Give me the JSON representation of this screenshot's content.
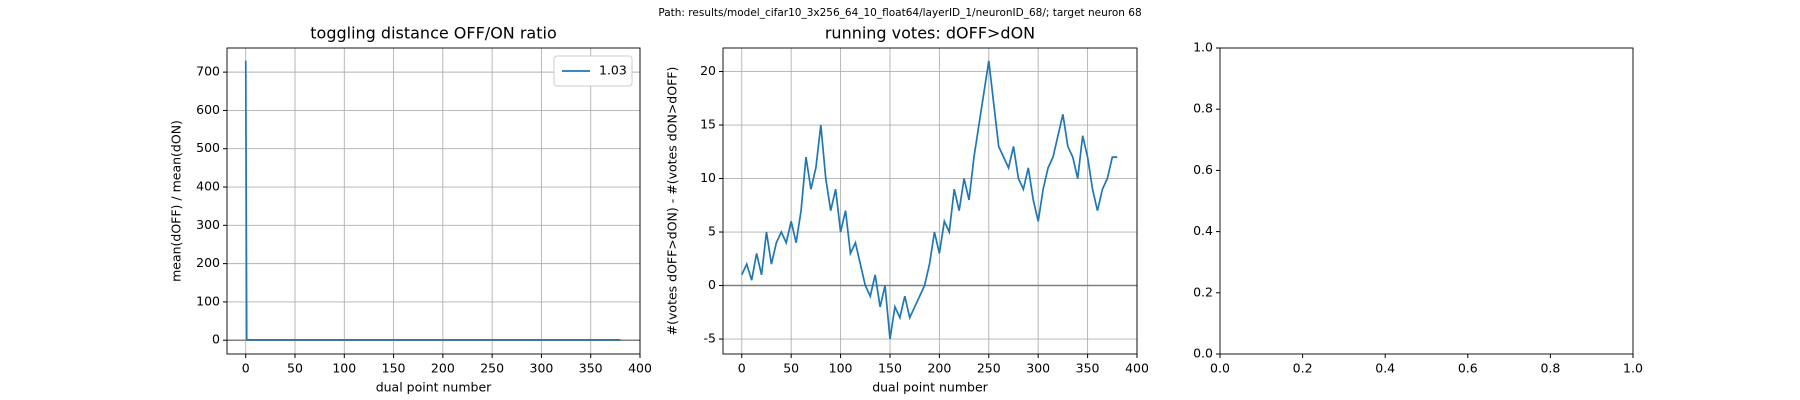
{
  "title": "Path: results/model_cifar10_3x256_64_10_float64/layerID_1/neuronID_68/; target neuron 68",
  "chart_data": [
    {
      "type": "line",
      "title": "toggling distance OFF/ON ratio",
      "xlabel": "dual point number",
      "ylabel": "mean(dOFF) / mean(dON)",
      "x": [
        0,
        1,
        2,
        380
      ],
      "series": [
        {
          "name": "1.03",
          "color": "#1f77b4",
          "values": [
            730,
            2,
            1.1,
            1.03
          ]
        }
      ],
      "xlim": [
        -19,
        400
      ],
      "ylim": [
        -36,
        763
      ],
      "xticks": [
        0,
        50,
        100,
        150,
        200,
        250,
        300,
        350,
        400
      ],
      "yticks": [
        0,
        100,
        200,
        300,
        400,
        500,
        600,
        700
      ],
      "hline": 0,
      "grid": true,
      "legend": "upper right"
    },
    {
      "type": "line",
      "title": "running votes: dOFF>dON",
      "xlabel": "dual point number",
      "ylabel": "#(votes dOFF>dON) - #(votes dON>dOFF)",
      "x": [
        0,
        5,
        10,
        15,
        20,
        25,
        30,
        35,
        40,
        45,
        50,
        55,
        60,
        65,
        70,
        75,
        80,
        85,
        90,
        95,
        100,
        105,
        110,
        115,
        120,
        125,
        130,
        135,
        140,
        145,
        150,
        155,
        160,
        165,
        170,
        175,
        180,
        185,
        190,
        195,
        200,
        205,
        210,
        215,
        220,
        225,
        230,
        235,
        240,
        245,
        250,
        255,
        260,
        265,
        270,
        275,
        280,
        285,
        290,
        295,
        300,
        305,
        310,
        315,
        320,
        325,
        330,
        335,
        340,
        345,
        350,
        355,
        360,
        365,
        370,
        375,
        380
      ],
      "series": [
        {
          "color": "#1f77b4",
          "values": [
            1,
            2,
            0.5,
            3,
            1,
            5,
            2,
            4,
            5,
            4,
            6,
            4,
            7,
            12,
            9,
            11,
            15,
            10,
            7,
            9,
            5,
            7,
            3,
            4,
            2,
            0,
            -1,
            1,
            -2,
            0,
            -5,
            -2,
            -3,
            -1,
            -3,
            -2,
            -1,
            0,
            2,
            5,
            3,
            6,
            5,
            9,
            7,
            10,
            8,
            12,
            15,
            18,
            21,
            17,
            13,
            12,
            11,
            13,
            10,
            9,
            11,
            8,
            6,
            9,
            11,
            12,
            14,
            16,
            13,
            12,
            10,
            14,
            12,
            9,
            7,
            9,
            10,
            12,
            12
          ]
        }
      ],
      "xlim": [
        -19,
        400
      ],
      "ylim": [
        -6.4,
        22.2
      ],
      "xticks": [
        0,
        50,
        100,
        150,
        200,
        250,
        300,
        350,
        400
      ],
      "yticks": [
        -5,
        0,
        5,
        10,
        15,
        20
      ],
      "hline": 0,
      "grid": true
    },
    {
      "type": "empty",
      "xlim": [
        0,
        1
      ],
      "ylim": [
        0,
        1
      ],
      "xticks": [
        {
          "value": 0,
          "label": "0.0"
        },
        0.2,
        0.4,
        0.6,
        0.8,
        {
          "value": 1,
          "label": "1.0"
        }
      ],
      "yticks": [
        {
          "value": 0,
          "label": "0.0"
        },
        0.2,
        0.4,
        0.6,
        0.8,
        {
          "value": 1,
          "label": "1.0"
        }
      ],
      "grid": false
    }
  ]
}
